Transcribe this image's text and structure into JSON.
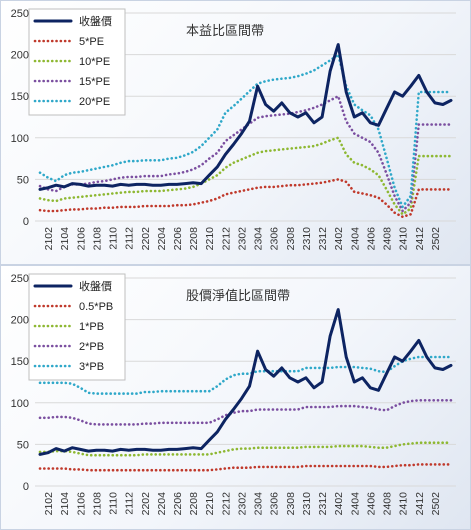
{
  "colors": {
    "price": "#0d2462",
    "low": "#c0392b",
    "mid": "#8eb832",
    "high": "#7b4fa0",
    "top": "#2fa8c9",
    "grid": "#d9d9d9"
  },
  "chart_data": [
    {
      "type": "line",
      "title": "本益比區間帶",
      "xlabel": "",
      "ylabel": "",
      "ylim": [
        0,
        250
      ],
      "yticks": [
        0,
        50,
        100,
        150,
        200,
        250
      ],
      "grid": true,
      "legend": "top-left",
      "x": [
        "2101",
        "2102",
        "2103",
        "2104",
        "2105",
        "2106",
        "2107",
        "2108",
        "2109",
        "2110",
        "2111",
        "2112",
        "2201",
        "2202",
        "2203",
        "2204",
        "2205",
        "2206",
        "2207",
        "2208",
        "2209",
        "2210",
        "2211",
        "2212",
        "2301",
        "2302",
        "2303",
        "2304",
        "2305",
        "2306",
        "2307",
        "2308",
        "2309",
        "2310",
        "2311",
        "2312",
        "2401",
        "2402",
        "2403",
        "2404",
        "2405",
        "2406",
        "2407",
        "2408",
        "2409",
        "2410",
        "2411",
        "2412",
        "2501",
        "2502",
        "2503",
        "2504"
      ],
      "xtick_labels": [
        "2102",
        "2104",
        "2106",
        "2108",
        "2110",
        "2112",
        "2202",
        "2204",
        "2206",
        "2208",
        "2210",
        "2212",
        "2302",
        "2304",
        "2306",
        "2308",
        "2310",
        "2312",
        "2402",
        "2404",
        "2406",
        "2408",
        "2410",
        "2412",
        "2502"
      ],
      "series": [
        {
          "name": "收盤價",
          "style": "solid",
          "color_key": "price",
          "values": [
            38,
            40,
            43,
            41,
            45,
            44,
            42,
            43,
            43,
            42,
            44,
            43,
            44,
            44,
            43,
            43,
            44,
            44,
            45,
            46,
            45,
            55,
            65,
            80,
            92,
            105,
            120,
            162,
            140,
            132,
            142,
            130,
            125,
            130,
            118,
            125,
            180,
            212,
            155,
            125,
            130,
            118,
            115,
            135,
            155,
            150,
            162,
            175,
            155,
            142,
            140,
            145
          ]
        },
        {
          "name": "5*PE",
          "style": "dotted",
          "color_key": "low",
          "values": [
            13,
            12,
            12,
            13,
            14,
            14,
            15,
            15,
            16,
            16,
            17,
            17,
            17,
            18,
            18,
            18,
            18,
            19,
            19,
            20,
            22,
            24,
            27,
            32,
            34,
            36,
            38,
            40,
            41,
            41,
            42,
            43,
            43,
            44,
            45,
            46,
            48,
            50,
            47,
            35,
            33,
            31,
            28,
            20,
            10,
            5,
            8,
            38,
            38,
            38,
            38,
            38
          ]
        },
        {
          "name": "10*PE",
          "style": "dotted",
          "color_key": "mid",
          "values": [
            27,
            25,
            24,
            27,
            28,
            29,
            30,
            31,
            32,
            33,
            34,
            35,
            35,
            36,
            36,
            36,
            37,
            38,
            39,
            41,
            45,
            50,
            55,
            64,
            70,
            74,
            78,
            82,
            84,
            85,
            86,
            87,
            88,
            89,
            90,
            93,
            97,
            100,
            80,
            70,
            67,
            62,
            55,
            38,
            20,
            8,
            15,
            78,
            78,
            78,
            78,
            78
          ]
        },
        {
          "name": "15*PE",
          "style": "dotted",
          "color_key": "high",
          "values": [
            42,
            38,
            36,
            41,
            44,
            44,
            45,
            47,
            48,
            50,
            52,
            53,
            53,
            54,
            54,
            54,
            56,
            57,
            59,
            62,
            67,
            75,
            82,
            96,
            103,
            110,
            117,
            124,
            126,
            127,
            128,
            129,
            131,
            133,
            136,
            140,
            145,
            150,
            120,
            105,
            100,
            95,
            82,
            57,
            30,
            12,
            22,
            116,
            116,
            116,
            116,
            116
          ]
        },
        {
          "name": "20*PE",
          "style": "dotted",
          "color_key": "top",
          "values": [
            58,
            52,
            48,
            55,
            58,
            59,
            61,
            63,
            65,
            67,
            70,
            72,
            72,
            73,
            73,
            73,
            75,
            76,
            79,
            83,
            90,
            100,
            110,
            130,
            138,
            147,
            156,
            165,
            168,
            170,
            171,
            172,
            174,
            177,
            181,
            187,
            193,
            200,
            162,
            140,
            133,
            127,
            110,
            76,
            40,
            17,
            30,
            155,
            155,
            155,
            155,
            155
          ]
        }
      ]
    },
    {
      "type": "line",
      "title": "股價淨值比區間帶",
      "xlabel": "",
      "ylabel": "",
      "ylim": [
        0,
        250
      ],
      "yticks": [
        0,
        50,
        100,
        150,
        200,
        250
      ],
      "grid": true,
      "legend": "top-left",
      "x": [
        "2101",
        "2102",
        "2103",
        "2104",
        "2105",
        "2106",
        "2107",
        "2108",
        "2109",
        "2110",
        "2111",
        "2112",
        "2201",
        "2202",
        "2203",
        "2204",
        "2205",
        "2206",
        "2207",
        "2208",
        "2209",
        "2210",
        "2211",
        "2212",
        "2301",
        "2302",
        "2303",
        "2304",
        "2305",
        "2306",
        "2307",
        "2308",
        "2309",
        "2310",
        "2311",
        "2312",
        "2401",
        "2402",
        "2403",
        "2404",
        "2405",
        "2406",
        "2407",
        "2408",
        "2409",
        "2410",
        "2411",
        "2412",
        "2501",
        "2502",
        "2503",
        "2504"
      ],
      "xtick_labels": [
        "2102",
        "2104",
        "2106",
        "2108",
        "2110",
        "2112",
        "2202",
        "2204",
        "2206",
        "2208",
        "2210",
        "2212",
        "2302",
        "2304",
        "2306",
        "2308",
        "2310",
        "2312",
        "2402",
        "2404",
        "2406",
        "2408",
        "2410",
        "2412",
        "2502"
      ],
      "series": [
        {
          "name": "收盤價",
          "style": "solid",
          "color_key": "price",
          "values": [
            38,
            40,
            45,
            42,
            46,
            44,
            42,
            43,
            43,
            42,
            44,
            43,
            44,
            44,
            43,
            43,
            44,
            44,
            45,
            46,
            45,
            55,
            65,
            80,
            92,
            105,
            120,
            162,
            140,
            132,
            142,
            130,
            125,
            130,
            118,
            125,
            180,
            212,
            155,
            125,
            130,
            118,
            115,
            135,
            155,
            150,
            162,
            175,
            155,
            142,
            140,
            145
          ]
        },
        {
          "name": "0.5*PB",
          "style": "dotted",
          "color_key": "low",
          "values": [
            21,
            21,
            21,
            21,
            20,
            20,
            19,
            19,
            19,
            19,
            19,
            19,
            19,
            19,
            19,
            19,
            19,
            19,
            19,
            19,
            19,
            19,
            20,
            21,
            22,
            22,
            22,
            23,
            23,
            23,
            23,
            23,
            23,
            24,
            24,
            24,
            24,
            24,
            24,
            24,
            24,
            24,
            23,
            23,
            24,
            25,
            25,
            26,
            26,
            26,
            26,
            26
          ]
        },
        {
          "name": "1*PB",
          "style": "dotted",
          "color_key": "mid",
          "values": [
            41,
            41,
            42,
            42,
            41,
            39,
            37,
            37,
            37,
            37,
            37,
            37,
            37,
            38,
            38,
            38,
            38,
            38,
            38,
            38,
            38,
            38,
            40,
            42,
            44,
            45,
            45,
            46,
            46,
            46,
            46,
            46,
            46,
            47,
            47,
            47,
            47,
            48,
            48,
            48,
            48,
            47,
            46,
            46,
            48,
            50,
            51,
            52,
            52,
            52,
            52,
            52
          ]
        },
        {
          "name": "2*PB",
          "style": "dotted",
          "color_key": "high",
          "values": [
            82,
            82,
            83,
            83,
            82,
            79,
            75,
            74,
            74,
            74,
            74,
            74,
            74,
            75,
            75,
            76,
            76,
            76,
            76,
            76,
            76,
            76,
            80,
            85,
            88,
            90,
            90,
            92,
            92,
            92,
            92,
            92,
            92,
            95,
            95,
            95,
            95,
            96,
            96,
            96,
            95,
            94,
            92,
            91,
            96,
            100,
            102,
            103,
            103,
            103,
            103,
            103
          ]
        },
        {
          "name": "3*PB",
          "style": "dotted",
          "color_key": "top",
          "values": [
            124,
            124,
            124,
            124,
            123,
            118,
            112,
            111,
            111,
            111,
            111,
            111,
            111,
            113,
            113,
            114,
            114,
            114,
            114,
            114,
            114,
            114,
            120,
            128,
            133,
            135,
            135,
            138,
            138,
            138,
            138,
            138,
            138,
            142,
            142,
            142,
            142,
            143,
            143,
            143,
            142,
            141,
            138,
            137,
            144,
            150,
            153,
            155,
            155,
            155,
            155,
            155
          ]
        }
      ]
    }
  ]
}
